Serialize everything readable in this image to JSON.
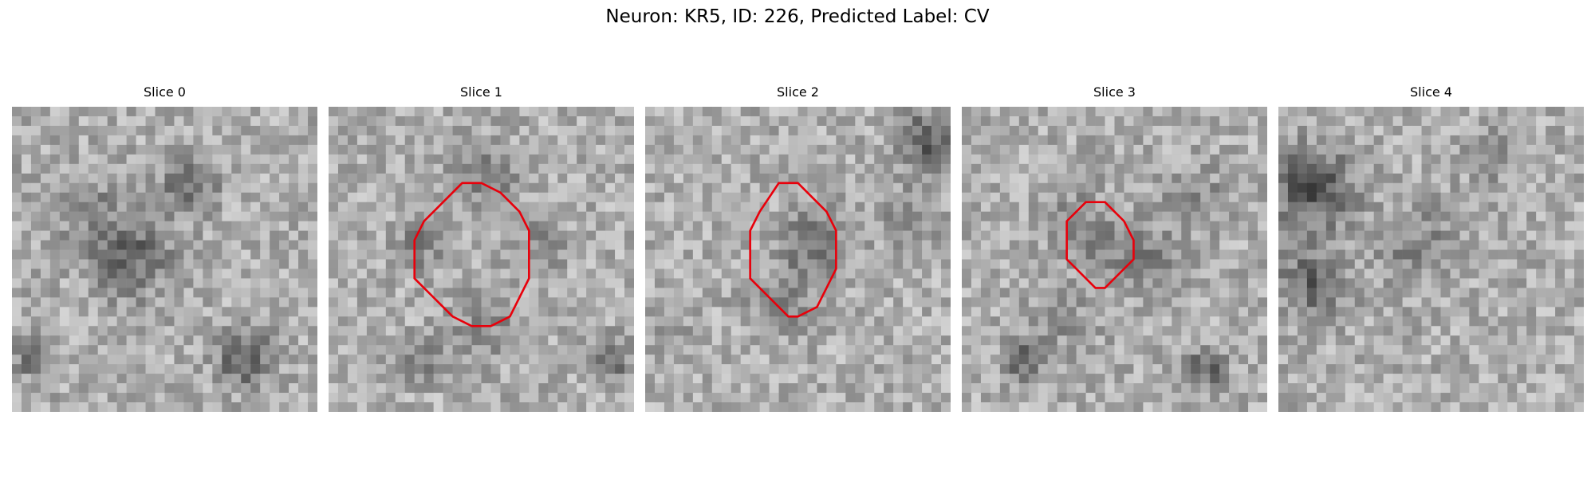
{
  "figure": {
    "title": "Neuron: KR5, ID: 226, Predicted Label: CV",
    "panels": [
      {
        "title": "Slice 0",
        "contour": false
      },
      {
        "title": "Slice 1",
        "contour": true
      },
      {
        "title": "Slice 2",
        "contour": true
      },
      {
        "title": "Slice 3",
        "contour": true
      },
      {
        "title": "Slice 4",
        "contour": false
      }
    ],
    "contour_color": "#e8000b"
  }
}
